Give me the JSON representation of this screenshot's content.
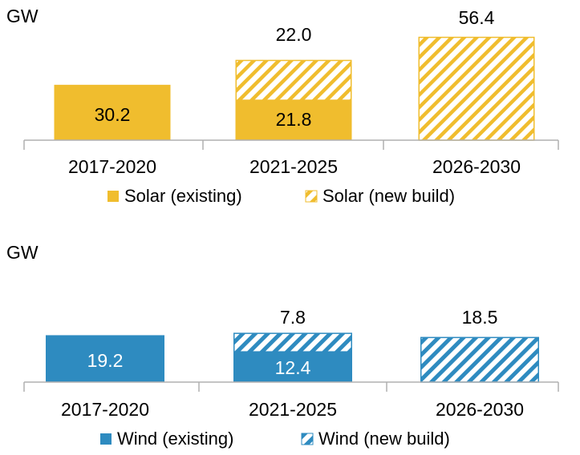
{
  "colors": {
    "solar": "#f0bd2e",
    "wind": "#2e8bc0",
    "axis": "#b0b0b0",
    "text": "#1a1a1a",
    "label_on_solar": "#1a1a1a",
    "label_on_wind": "#ffffff"
  },
  "chart_data": [
    {
      "type": "bar",
      "stacked": true,
      "ylabel": "GW",
      "categories": [
        "2017-2020",
        "2021-2025",
        "2026-2030"
      ],
      "series": [
        {
          "name": "Solar (existing)",
          "pattern": "solid",
          "values": [
            30.2,
            21.8,
            0
          ]
        },
        {
          "name": "Solar (new build)",
          "pattern": "hatched",
          "values": [
            0,
            22.0,
            56.4
          ]
        }
      ],
      "value_labels": {
        "inside": [
          "30.2",
          "21.8",
          ""
        ],
        "above": [
          "",
          "22.0",
          "56.4"
        ]
      },
      "legend": "bottom",
      "grid": false
    },
    {
      "type": "bar",
      "stacked": true,
      "ylabel": "GW",
      "categories": [
        "2017-2020",
        "2021-2025",
        "2026-2030"
      ],
      "series": [
        {
          "name": "Wind (existing)",
          "pattern": "solid",
          "values": [
            19.2,
            12.4,
            0
          ]
        },
        {
          "name": "Wind (new build)",
          "pattern": "hatched",
          "values": [
            0,
            7.8,
            18.5
          ]
        }
      ],
      "value_labels": {
        "inside": [
          "19.2",
          "12.4",
          ""
        ],
        "above": [
          "",
          "7.8",
          "18.5"
        ]
      },
      "legend": "bottom",
      "grid": false
    }
  ]
}
